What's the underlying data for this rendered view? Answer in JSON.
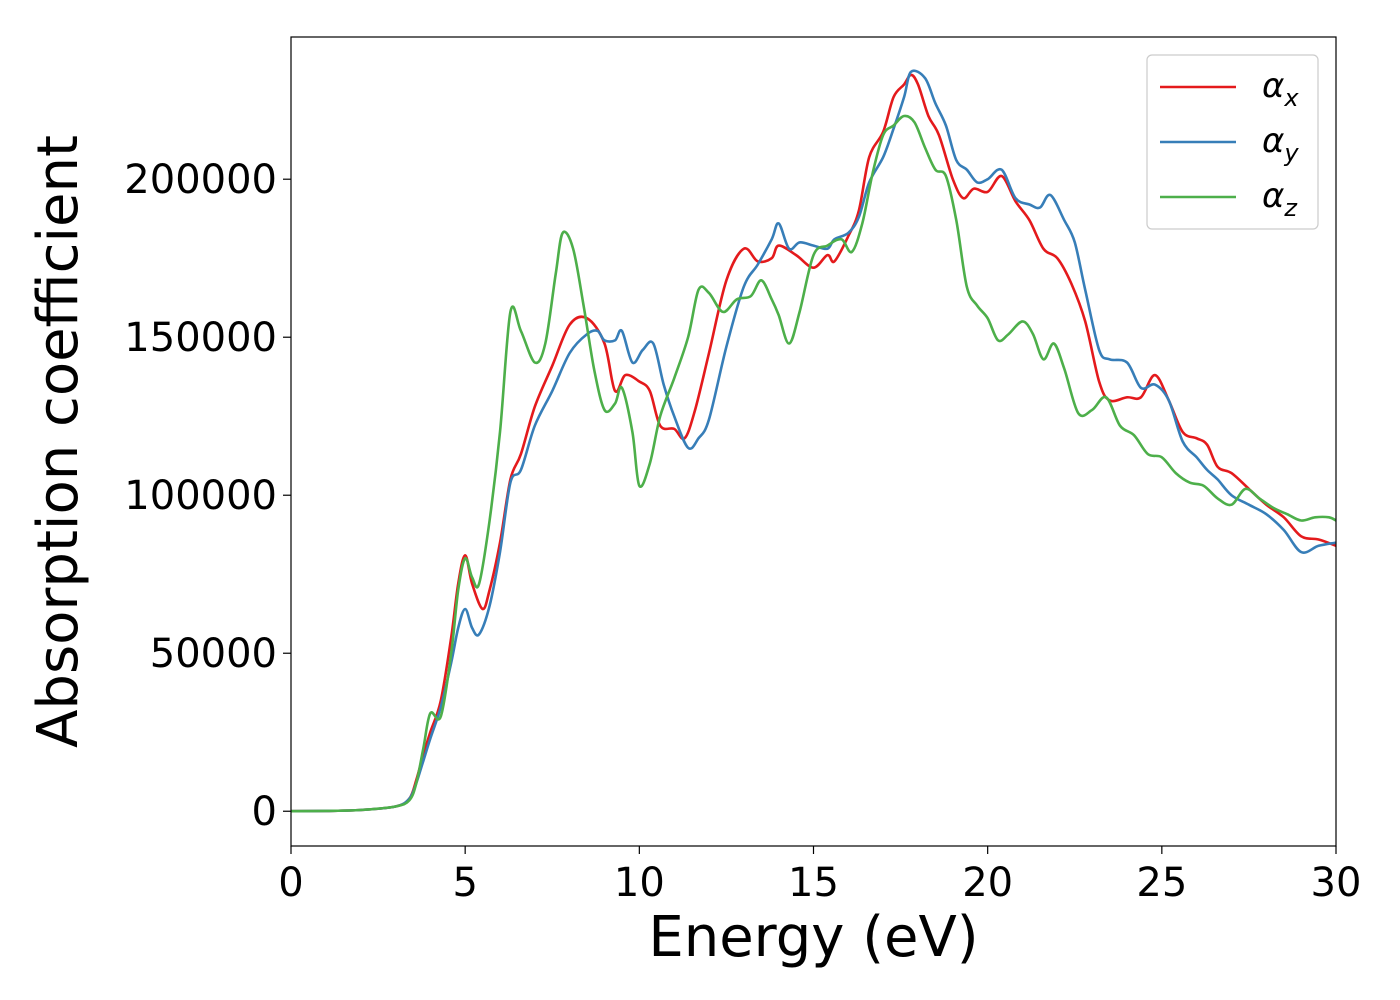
{
  "chart_data": {
    "type": "line",
    "xlabel": "Energy (eV)",
    "ylabel": "Absorption coefficient",
    "xlim": [
      0,
      30
    ],
    "ylim": [
      -11000,
      245000
    ],
    "xticks": [
      0,
      5,
      10,
      15,
      20,
      25,
      30
    ],
    "xtick_labels": [
      "0",
      "5",
      "10",
      "15",
      "20",
      "25",
      "30"
    ],
    "yticks": [
      0,
      50000,
      100000,
      150000,
      200000
    ],
    "ytick_labels": [
      "0",
      "50000",
      "100000",
      "150000",
      "200000"
    ],
    "grid": false,
    "legend_position": "top-right",
    "series": [
      {
        "name": "αx",
        "label_main": "α",
        "label_sub": "x",
        "color": "#e41a1c",
        "points": [
          [
            0,
            0
          ],
          [
            1,
            100
          ],
          [
            2,
            400
          ],
          [
            3,
            1500
          ],
          [
            3.4,
            4000
          ],
          [
            3.6,
            10000
          ],
          [
            3.8,
            18000
          ],
          [
            4,
            25000
          ],
          [
            4.3,
            35000
          ],
          [
            4.6,
            55000
          ],
          [
            4.8,
            72000
          ],
          [
            5,
            81000
          ],
          [
            5.2,
            72000
          ],
          [
            5.5,
            64000
          ],
          [
            5.7,
            70000
          ],
          [
            6,
            85000
          ],
          [
            6.3,
            105000
          ],
          [
            6.6,
            113000
          ],
          [
            7,
            128000
          ],
          [
            7.5,
            141000
          ],
          [
            8,
            154000
          ],
          [
            8.5,
            156000
          ],
          [
            9,
            148000
          ],
          [
            9.3,
            133000
          ],
          [
            9.6,
            138000
          ],
          [
            10,
            136000
          ],
          [
            10.3,
            133000
          ],
          [
            10.6,
            122000
          ],
          [
            11,
            121000
          ],
          [
            11.3,
            118000
          ],
          [
            11.6,
            127000
          ],
          [
            12,
            145000
          ],
          [
            12.5,
            168000
          ],
          [
            13,
            178000
          ],
          [
            13.4,
            174000
          ],
          [
            13.8,
            175000
          ],
          [
            14,
            179000
          ],
          [
            14.5,
            176000
          ],
          [
            15,
            172000
          ],
          [
            15.4,
            176000
          ],
          [
            15.6,
            174000
          ],
          [
            16,
            182000
          ],
          [
            16.3,
            190000
          ],
          [
            16.6,
            207000
          ],
          [
            17,
            215000
          ],
          [
            17.3,
            226000
          ],
          [
            17.6,
            230000
          ],
          [
            17.8,
            233000
          ],
          [
            18,
            230000
          ],
          [
            18.3,
            220000
          ],
          [
            18.6,
            214000
          ],
          [
            19,
            200000
          ],
          [
            19.3,
            194000
          ],
          [
            19.6,
            197000
          ],
          [
            20,
            196000
          ],
          [
            20.4,
            201000
          ],
          [
            20.8,
            193000
          ],
          [
            21.2,
            187000
          ],
          [
            21.6,
            178000
          ],
          [
            22,
            175000
          ],
          [
            22.4,
            167000
          ],
          [
            22.8,
            155000
          ],
          [
            23.2,
            136000
          ],
          [
            23.5,
            130000
          ],
          [
            24,
            131000
          ],
          [
            24.4,
            131000
          ],
          [
            24.8,
            138000
          ],
          [
            25.2,
            130000
          ],
          [
            25.6,
            120000
          ],
          [
            26,
            118000
          ],
          [
            26.3,
            116000
          ],
          [
            26.6,
            109000
          ],
          [
            27,
            107000
          ],
          [
            27.5,
            102000
          ],
          [
            28,
            97000
          ],
          [
            28.5,
            93000
          ],
          [
            29,
            87000
          ],
          [
            29.5,
            86000
          ],
          [
            30,
            84000
          ]
        ]
      },
      {
        "name": "αy",
        "label_main": "α",
        "label_sub": "y",
        "color": "#377eb8",
        "points": [
          [
            0,
            0
          ],
          [
            1,
            100
          ],
          [
            2,
            400
          ],
          [
            3,
            1500
          ],
          [
            3.4,
            4000
          ],
          [
            3.6,
            9000
          ],
          [
            3.8,
            16000
          ],
          [
            4,
            23000
          ],
          [
            4.3,
            33000
          ],
          [
            4.6,
            47000
          ],
          [
            4.8,
            58000
          ],
          [
            5,
            64000
          ],
          [
            5.2,
            58000
          ],
          [
            5.4,
            56000
          ],
          [
            5.7,
            65000
          ],
          [
            6,
            82000
          ],
          [
            6.3,
            104000
          ],
          [
            6.6,
            108000
          ],
          [
            7,
            122000
          ],
          [
            7.5,
            133000
          ],
          [
            8,
            145000
          ],
          [
            8.5,
            151000
          ],
          [
            8.8,
            152000
          ],
          [
            9,
            149000
          ],
          [
            9.3,
            149000
          ],
          [
            9.5,
            152000
          ],
          [
            9.8,
            142000
          ],
          [
            10.1,
            146000
          ],
          [
            10.4,
            148000
          ],
          [
            10.7,
            135000
          ],
          [
            11,
            125000
          ],
          [
            11.4,
            115000
          ],
          [
            11.7,
            118000
          ],
          [
            12,
            124000
          ],
          [
            12.5,
            147000
          ],
          [
            13,
            166000
          ],
          [
            13.4,
            173000
          ],
          [
            13.8,
            181000
          ],
          [
            14,
            186000
          ],
          [
            14.3,
            178000
          ],
          [
            14.6,
            180000
          ],
          [
            15,
            179000
          ],
          [
            15.4,
            178000
          ],
          [
            15.6,
            181000
          ],
          [
            16,
            183000
          ],
          [
            16.3,
            188000
          ],
          [
            16.6,
            199000
          ],
          [
            17,
            207000
          ],
          [
            17.3,
            216000
          ],
          [
            17.6,
            226000
          ],
          [
            17.8,
            234000
          ],
          [
            18.2,
            232000
          ],
          [
            18.5,
            224000
          ],
          [
            18.8,
            217000
          ],
          [
            19.1,
            206000
          ],
          [
            19.4,
            203000
          ],
          [
            19.7,
            199000
          ],
          [
            20,
            200000
          ],
          [
            20.4,
            203000
          ],
          [
            20.8,
            194000
          ],
          [
            21.2,
            192000
          ],
          [
            21.5,
            191000
          ],
          [
            21.8,
            195000
          ],
          [
            22.2,
            187000
          ],
          [
            22.5,
            180000
          ],
          [
            22.8,
            165000
          ],
          [
            23.2,
            146000
          ],
          [
            23.5,
            143000
          ],
          [
            24,
            142000
          ],
          [
            24.4,
            134000
          ],
          [
            24.8,
            135000
          ],
          [
            25.2,
            130000
          ],
          [
            25.6,
            117000
          ],
          [
            26,
            112000
          ],
          [
            26.3,
            108000
          ],
          [
            26.6,
            105000
          ],
          [
            27,
            100000
          ],
          [
            27.5,
            97000
          ],
          [
            28,
            94000
          ],
          [
            28.5,
            89000
          ],
          [
            29,
            82000
          ],
          [
            29.5,
            84000
          ],
          [
            30,
            85000
          ]
        ]
      },
      {
        "name": "αz",
        "label_main": "α",
        "label_sub": "z",
        "color": "#4daf4a",
        "points": [
          [
            0,
            0
          ],
          [
            1,
            100
          ],
          [
            2,
            400
          ],
          [
            3,
            1500
          ],
          [
            3.4,
            3500
          ],
          [
            3.6,
            9000
          ],
          [
            3.8,
            20000
          ],
          [
            4,
            31000
          ],
          [
            4.3,
            30000
          ],
          [
            4.6,
            50000
          ],
          [
            4.8,
            70000
          ],
          [
            5,
            80000
          ],
          [
            5.2,
            74000
          ],
          [
            5.4,
            72000
          ],
          [
            5.7,
            92000
          ],
          [
            6,
            120000
          ],
          [
            6.3,
            158000
          ],
          [
            6.6,
            152000
          ],
          [
            7,
            142000
          ],
          [
            7.3,
            148000
          ],
          [
            7.6,
            170000
          ],
          [
            7.8,
            183000
          ],
          [
            8.1,
            178000
          ],
          [
            8.4,
            160000
          ],
          [
            8.7,
            140000
          ],
          [
            9,
            127000
          ],
          [
            9.3,
            129000
          ],
          [
            9.5,
            134000
          ],
          [
            9.8,
            120000
          ],
          [
            10,
            103000
          ],
          [
            10.3,
            110000
          ],
          [
            10.6,
            125000
          ],
          [
            11,
            137000
          ],
          [
            11.4,
            150000
          ],
          [
            11.7,
            165000
          ],
          [
            12,
            164000
          ],
          [
            12.4,
            158000
          ],
          [
            12.8,
            162000
          ],
          [
            13.2,
            163000
          ],
          [
            13.5,
            168000
          ],
          [
            13.8,
            162000
          ],
          [
            14,
            157000
          ],
          [
            14.3,
            148000
          ],
          [
            14.6,
            158000
          ],
          [
            15,
            176000
          ],
          [
            15.4,
            179000
          ],
          [
            15.8,
            181000
          ],
          [
            16.1,
            177000
          ],
          [
            16.4,
            186000
          ],
          [
            16.7,
            202000
          ],
          [
            17,
            214000
          ],
          [
            17.3,
            217000
          ],
          [
            17.6,
            220000
          ],
          [
            17.9,
            218000
          ],
          [
            18.2,
            210000
          ],
          [
            18.5,
            203000
          ],
          [
            18.8,
            201000
          ],
          [
            19.1,
            187000
          ],
          [
            19.4,
            166000
          ],
          [
            19.7,
            160000
          ],
          [
            20,
            156000
          ],
          [
            20.3,
            149000
          ],
          [
            20.6,
            151000
          ],
          [
            21,
            155000
          ],
          [
            21.3,
            151000
          ],
          [
            21.6,
            143000
          ],
          [
            21.9,
            148000
          ],
          [
            22.2,
            140000
          ],
          [
            22.6,
            126000
          ],
          [
            23,
            127000
          ],
          [
            23.4,
            131000
          ],
          [
            23.8,
            122000
          ],
          [
            24.2,
            119000
          ],
          [
            24.6,
            113000
          ],
          [
            25,
            112000
          ],
          [
            25.4,
            107000
          ],
          [
            25.8,
            104000
          ],
          [
            26.2,
            103000
          ],
          [
            26.6,
            99000
          ],
          [
            27,
            97000
          ],
          [
            27.4,
            102000
          ],
          [
            27.8,
            99000
          ],
          [
            28.2,
            96000
          ],
          [
            28.6,
            94000
          ],
          [
            29,
            92000
          ],
          [
            29.4,
            93000
          ],
          [
            29.8,
            93000
          ],
          [
            30,
            92000
          ]
        ]
      }
    ]
  }
}
